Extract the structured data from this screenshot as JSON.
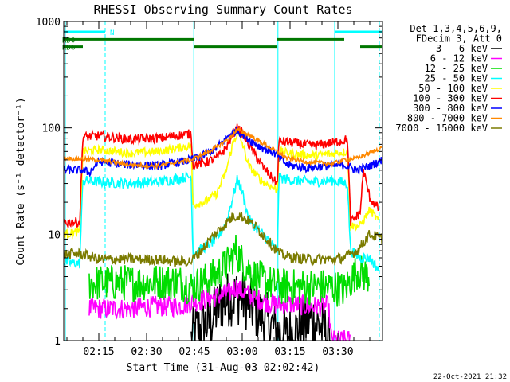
{
  "chart_data": {
    "type": "line",
    "title": "RHESSI Observing Summary Count Rates",
    "xlabel": "Start Time (31-Aug-03 02:02:42)",
    "ylabel": "Count Rate (s⁻¹ detector⁻¹)",
    "yscale": "log",
    "ylim": [
      1,
      1000
    ],
    "xlim_min": [
      4,
      104
    ],
    "x_units": "minutes after 02:00 UT",
    "y_ticks": [
      {
        "value": 1,
        "label": "1"
      },
      {
        "value": 10,
        "label": "10"
      },
      {
        "value": 100,
        "label": "100"
      },
      {
        "value": 1000,
        "label": "1000"
      }
    ],
    "x_ticks": [
      {
        "value": 15,
        "label": "02:15"
      },
      {
        "value": 30,
        "label": "02:30"
      },
      {
        "value": 45,
        "label": "02:45"
      },
      {
        "value": 60,
        "label": "03:00"
      },
      {
        "value": 75,
        "label": "03:15"
      },
      {
        "value": 90,
        "label": "03:30"
      }
    ],
    "legend_header": [
      "Det 1,3,4,5,6,9,",
      "FDecim 3, Att 0"
    ],
    "legend_position": "top-right",
    "series": [
      {
        "name": "3 - 6 keV",
        "color": "#000000",
        "noise": 0.55,
        "points": [
          [
            44,
            1
          ],
          [
            45,
            1.2
          ],
          [
            50,
            1.5
          ],
          [
            53,
            2.2
          ],
          [
            56,
            2.5
          ],
          [
            58,
            2.6
          ],
          [
            60,
            2.5
          ],
          [
            62,
            2.2
          ],
          [
            65,
            1.8
          ],
          [
            68,
            1.5
          ],
          [
            71,
            1.2
          ],
          [
            74,
            1.1
          ],
          [
            78,
            1.3
          ],
          [
            82,
            1.6
          ],
          [
            86,
            1.2
          ],
          [
            88,
            1
          ]
        ]
      },
      {
        "name": "6 - 12 keV",
        "color": "#ff00ff",
        "noise": 0.2,
        "points": [
          [
            12,
            2
          ],
          [
            25,
            2
          ],
          [
            32,
            2.1
          ],
          [
            40,
            2.1
          ],
          [
            44,
            2.3
          ],
          [
            50,
            2.5
          ],
          [
            56,
            2.8
          ],
          [
            58,
            3.2
          ],
          [
            60,
            2.9
          ],
          [
            64,
            2.5
          ],
          [
            70,
            2.2
          ],
          [
            76,
            2.2
          ],
          [
            82,
            2.1
          ],
          [
            87,
            2.1
          ],
          [
            88,
            1
          ],
          [
            94,
            1
          ]
        ]
      },
      {
        "name": "12 - 25 keV",
        "color": "#00dd00",
        "noise": 0.35,
        "points": [
          [
            12,
            3.5
          ],
          [
            25,
            3.5
          ],
          [
            40,
            3.6
          ],
          [
            44,
            3.2
          ],
          [
            48,
            3.6
          ],
          [
            52,
            4.2
          ],
          [
            56,
            5.5
          ],
          [
            58,
            7
          ],
          [
            60,
            5.5
          ],
          [
            64,
            4
          ],
          [
            68,
            3.5
          ],
          [
            72,
            3.2
          ],
          [
            80,
            3.2
          ],
          [
            88,
            3.2
          ],
          [
            92,
            3
          ],
          [
            96,
            4.5
          ],
          [
            100,
            4
          ]
        ]
      },
      {
        "name": "25 - 50 keV",
        "color": "#00ffff",
        "noise": 0.1,
        "points": [
          [
            4,
            5.5
          ],
          [
            9,
            5.3
          ],
          [
            10,
            32
          ],
          [
            15,
            31
          ],
          [
            24,
            30
          ],
          [
            34,
            31
          ],
          [
            39,
            33
          ],
          [
            44,
            35
          ],
          [
            44.5,
            6.5
          ],
          [
            48,
            7.5
          ],
          [
            52,
            9
          ],
          [
            55,
            13
          ],
          [
            57,
            22
          ],
          [
            58.5,
            33
          ],
          [
            60,
            25
          ],
          [
            62,
            14
          ],
          [
            65,
            11
          ],
          [
            68,
            9
          ],
          [
            70,
            7.5
          ],
          [
            71,
            7
          ],
          [
            71.5,
            34
          ],
          [
            76,
            32
          ],
          [
            82,
            31
          ],
          [
            88,
            32
          ],
          [
            93,
            30
          ],
          [
            94,
            7
          ],
          [
            97,
            6
          ],
          [
            100,
            6
          ],
          [
            103,
            4.5
          ]
        ]
      },
      {
        "name": "50 - 100 keV",
        "color": "#ffff00",
        "noise": 0.08,
        "points": [
          [
            4,
            10
          ],
          [
            9,
            10.5
          ],
          [
            10,
            60
          ],
          [
            15,
            62
          ],
          [
            25,
            58
          ],
          [
            34,
            60
          ],
          [
            39,
            64
          ],
          [
            44,
            68
          ],
          [
            44.5,
            19
          ],
          [
            48,
            20
          ],
          [
            52,
            24
          ],
          [
            55,
            40
          ],
          [
            57,
            70
          ],
          [
            58.5,
            90
          ],
          [
            60,
            72
          ],
          [
            62,
            44
          ],
          [
            66,
            32
          ],
          [
            70,
            27
          ],
          [
            71,
            26
          ],
          [
            71.5,
            60
          ],
          [
            76,
            57
          ],
          [
            82,
            55
          ],
          [
            88,
            57
          ],
          [
            93,
            60
          ],
          [
            94,
            12
          ],
          [
            97,
            12
          ],
          [
            100,
            17
          ],
          [
            103,
            13
          ]
        ]
      },
      {
        "name": "100 - 300 keV",
        "color": "#ff0000",
        "noise": 0.09,
        "points": [
          [
            4,
            13
          ],
          [
            9,
            13
          ],
          [
            10,
            82
          ],
          [
            15,
            84
          ],
          [
            25,
            78
          ],
          [
            34,
            80
          ],
          [
            39,
            84
          ],
          [
            44,
            88
          ],
          [
            44.5,
            45
          ],
          [
            48,
            47
          ],
          [
            52,
            52
          ],
          [
            55,
            65
          ],
          [
            57,
            88
          ],
          [
            58.5,
            100
          ],
          [
            60,
            90
          ],
          [
            62,
            70
          ],
          [
            66,
            45
          ],
          [
            70,
            32
          ],
          [
            71,
            30
          ],
          [
            71.5,
            75
          ],
          [
            76,
            72
          ],
          [
            82,
            68
          ],
          [
            88,
            72
          ],
          [
            93,
            78
          ],
          [
            94,
            13
          ],
          [
            97,
            16
          ],
          [
            98,
            40
          ],
          [
            100,
            22
          ],
          [
            103,
            17
          ]
        ]
      },
      {
        "name": "300 - 800 keV",
        "color": "#0000ff",
        "noise": 0.08,
        "points": [
          [
            4,
            40
          ],
          [
            10,
            40
          ],
          [
            12,
            38
          ],
          [
            15,
            48
          ],
          [
            25,
            45
          ],
          [
            34,
            44
          ],
          [
            39,
            47
          ],
          [
            44,
            50
          ],
          [
            48,
            55
          ],
          [
            52,
            65
          ],
          [
            55,
            80
          ],
          [
            58,
            95
          ],
          [
            60,
            88
          ],
          [
            62,
            78
          ],
          [
            65,
            68
          ],
          [
            70,
            58
          ],
          [
            74,
            45
          ],
          [
            80,
            42
          ],
          [
            88,
            44
          ],
          [
            92,
            45
          ],
          [
            96,
            40
          ],
          [
            100,
            44
          ],
          [
            104,
            50
          ]
        ]
      },
      {
        "name": "800 - 7000 keV",
        "color": "#ff8800",
        "noise": 0.04,
        "points": [
          [
            4,
            52
          ],
          [
            15,
            50
          ],
          [
            25,
            45
          ],
          [
            34,
            44
          ],
          [
            40,
            48
          ],
          [
            44,
            50
          ],
          [
            48,
            57
          ],
          [
            52,
            66
          ],
          [
            56,
            80
          ],
          [
            58.5,
            96
          ],
          [
            60,
            92
          ],
          [
            62,
            86
          ],
          [
            65,
            76
          ],
          [
            70,
            62
          ],
          [
            74,
            52
          ],
          [
            80,
            48
          ],
          [
            88,
            46
          ],
          [
            92,
            50
          ],
          [
            96,
            52
          ],
          [
            100,
            58
          ],
          [
            104,
            66
          ]
        ]
      },
      {
        "name": "7000 - 15000 keV",
        "color": "#7b7b00",
        "noise": 0.1,
        "points": [
          [
            4,
            6.5
          ],
          [
            10,
            6.5
          ],
          [
            15,
            5.8
          ],
          [
            25,
            5.8
          ],
          [
            34,
            5.8
          ],
          [
            40,
            5.5
          ],
          [
            44,
            5.6
          ],
          [
            47,
            7
          ],
          [
            50,
            9
          ],
          [
            54,
            12
          ],
          [
            57,
            14.5
          ],
          [
            59,
            15
          ],
          [
            61,
            14
          ],
          [
            64,
            12
          ],
          [
            67,
            9.5
          ],
          [
            70,
            7.5
          ],
          [
            72,
            6.5
          ],
          [
            76,
            6
          ],
          [
            82,
            5.8
          ],
          [
            88,
            5.8
          ],
          [
            92,
            6
          ],
          [
            96,
            7
          ],
          [
            100,
            10
          ],
          [
            104,
            9
          ]
        ]
      }
    ],
    "coverage_flags": [
      {
        "label": "N",
        "color": "#00ffff",
        "start": 4,
        "end": 17,
        "level": 800
      },
      {
        "label": "",
        "color": "#00ffff",
        "start": 89,
        "end": 104,
        "level": 800
      },
      {
        "label": "RD0",
        "color": "#007700",
        "start": 4,
        "end": 45,
        "level": 680
      },
      {
        "label": "",
        "color": "#007700",
        "start": 71,
        "end": 92,
        "level": 680
      },
      {
        "label": "RD6",
        "color": "#007700",
        "start": 4,
        "end": 10,
        "level": 580
      },
      {
        "label": "",
        "color": "#007700",
        "start": 45,
        "end": 71,
        "level": 580
      },
      {
        "label": "",
        "color": "#007700",
        "start": 97,
        "end": 104,
        "level": 580
      }
    ],
    "markers_solid": [
      4.5,
      44.8,
      71.2,
      89
    ],
    "markers_dashed": [
      17,
      103
    ],
    "timestamp": "22-Oct-2021 21:32"
  }
}
